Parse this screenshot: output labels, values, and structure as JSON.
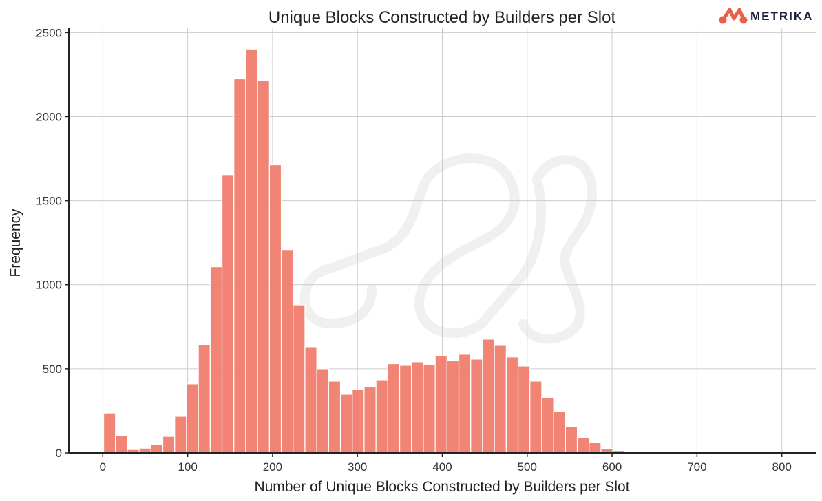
{
  "brand": {
    "name": "METRIKA",
    "color": "#e8604c"
  },
  "chart_data": {
    "type": "bar",
    "subtype": "histogram",
    "title": "Unique Blocks Constructed by Builders per Slot",
    "xlabel": "Number of Unique Blocks Constructed by Builders per Slot",
    "ylabel": "Frequency",
    "xlim": [
      -40,
      840
    ],
    "ylim": [
      0,
      2530
    ],
    "xticks": [
      0,
      100,
      200,
      300,
      400,
      500,
      600,
      700,
      800
    ],
    "yticks": [
      0,
      500,
      1000,
      1500,
      2000,
      2500
    ],
    "grid": true,
    "bar_color": "#f07b6b",
    "bin_start": 1,
    "bin_width": 13.95,
    "values": [
      237,
      103,
      20,
      28,
      48,
      98,
      217,
      410,
      643,
      1107,
      1651,
      2225,
      2402,
      2217,
      1713,
      1209,
      880,
      631,
      500,
      426,
      348,
      377,
      393,
      434,
      530,
      520,
      541,
      524,
      578,
      549,
      586,
      557,
      676,
      639,
      570,
      516,
      426,
      328,
      246,
      156,
      90,
      61,
      25,
      10
    ]
  }
}
